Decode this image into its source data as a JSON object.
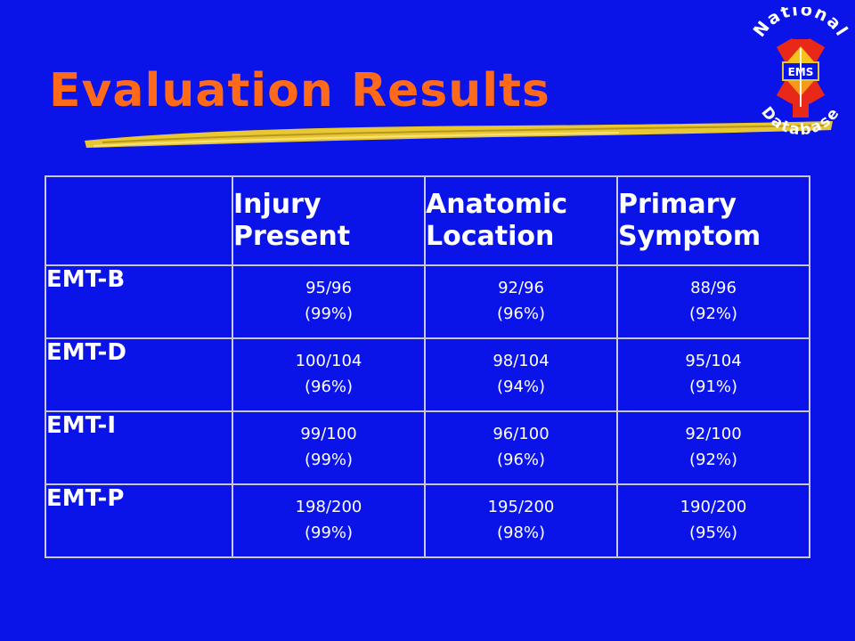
{
  "title": "Evaluation Results",
  "logo": {
    "top_text": "National",
    "center_text": "EMS",
    "bottom_text": "Database",
    "icon": "star-of-life-icon"
  },
  "colors": {
    "background": "#0a14e8",
    "title": "#ff6a1a",
    "brush": "#e8c832",
    "table_border": "#c9c9d6",
    "text": "#ffffff"
  },
  "table": {
    "headers": [
      "",
      "Injury Present",
      "Anatomic Location",
      "Primary Symptom"
    ],
    "header_lines": [
      [
        "",
        ""
      ],
      [
        "Injury",
        "Present"
      ],
      [
        "Anatomic",
        "Location"
      ],
      [
        "Primary",
        "Symptom"
      ]
    ],
    "rows": [
      {
        "label": "EMT-B",
        "cells": [
          {
            "count": "95/96",
            "pct": "(99%)"
          },
          {
            "count": "92/96",
            "pct": "(96%)"
          },
          {
            "count": "88/96",
            "pct": "(92%)"
          }
        ]
      },
      {
        "label": "EMT-D",
        "cells": [
          {
            "count": "100/104",
            "pct": "(96%)"
          },
          {
            "count": "98/104",
            "pct": "(94%)"
          },
          {
            "count": "95/104",
            "pct": "(91%)"
          }
        ]
      },
      {
        "label": "EMT-I",
        "cells": [
          {
            "count": "99/100",
            "pct": "(99%)"
          },
          {
            "count": "96/100",
            "pct": "(96%)"
          },
          {
            "count": "92/100",
            "pct": "(92%)"
          }
        ]
      },
      {
        "label": "EMT-P",
        "cells": [
          {
            "count": "198/200",
            "pct": "(99%)"
          },
          {
            "count": "195/200",
            "pct": "(98%)"
          },
          {
            "count": "190/200",
            "pct": "(95%)"
          }
        ]
      }
    ]
  }
}
